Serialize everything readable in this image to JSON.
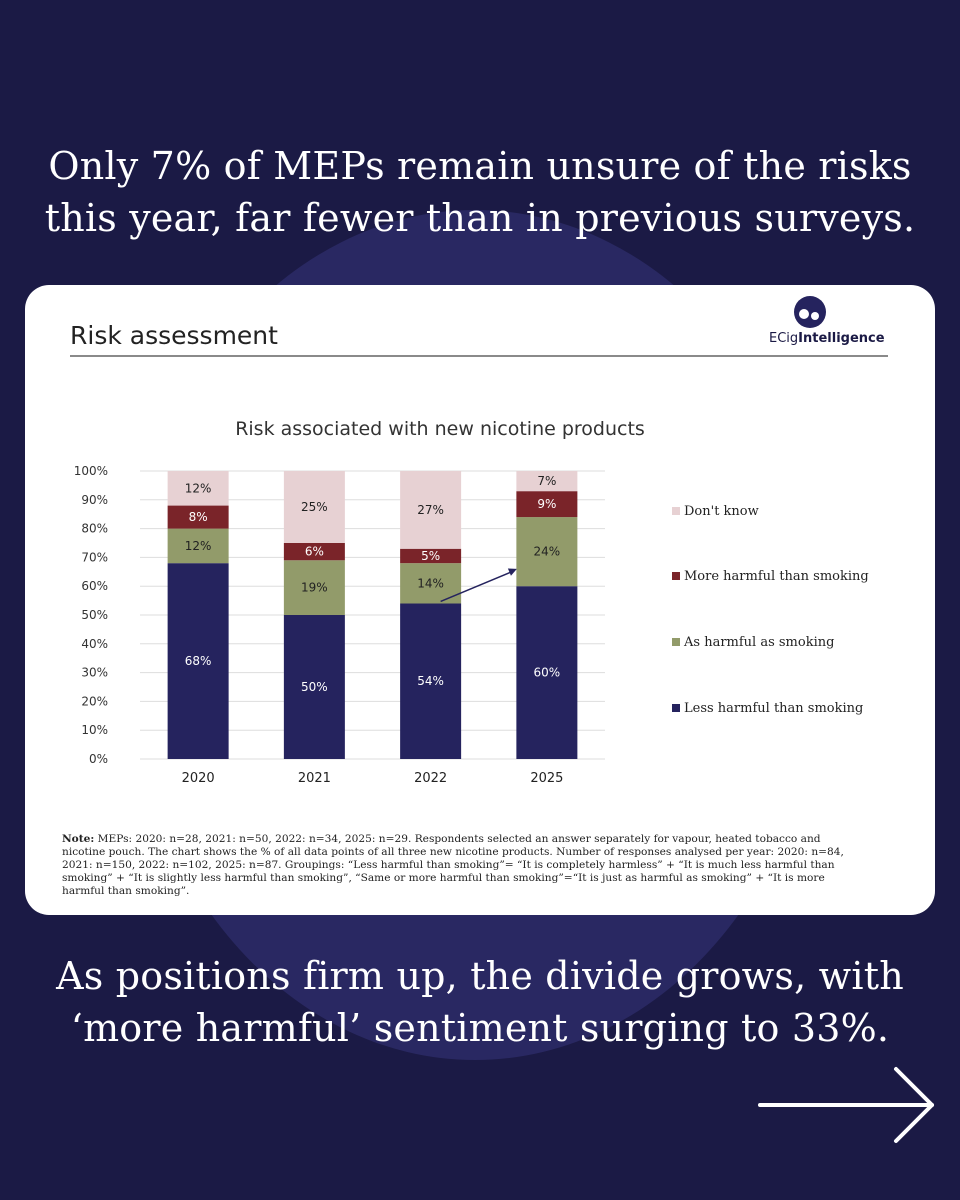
{
  "headline_top": {
    "line1": "Only 7% of MEPs remain unsure of the risks",
    "line2": "this year, far fewer than in previous surveys."
  },
  "headline_bottom": {
    "line1": "As positions firm up, the divide grows, with",
    "line2": "‘more harmful’ sentiment surging to 33%."
  },
  "slide": {
    "title": "Risk assessment",
    "logo_text_light": "ECig",
    "logo_text_bold": "Intelligence"
  },
  "chart_data": {
    "type": "bar",
    "stacked": true,
    "title": "Risk associated with new nicotine products",
    "categories": [
      "2020",
      "2021",
      "2022",
      "2025"
    ],
    "ylim": [
      0,
      100
    ],
    "yticks": [
      "0%",
      "10%",
      "20%",
      "30%",
      "40%",
      "50%",
      "60%",
      "70%",
      "80%",
      "90%",
      "100%"
    ],
    "series": [
      {
        "name": "Less harmful than smoking",
        "color": "#25235e",
        "values": [
          68,
          50,
          54,
          60
        ],
        "labels": [
          "68%",
          "50%",
          "54%",
          "60%"
        ],
        "label_color": "#ffffff"
      },
      {
        "name": "As harmful as smoking",
        "color": "#929b6a",
        "values": [
          12,
          19,
          14,
          24
        ],
        "labels": [
          "12%",
          "19%",
          "14%",
          "24%"
        ],
        "label_color": "#222222"
      },
      {
        "name": "More harmful than smoking",
        "color": "#7a2429",
        "values": [
          8,
          6,
          5,
          9
        ],
        "labels": [
          "8%",
          "6%",
          "5%",
          "9%"
        ],
        "label_color": "#ffffff"
      },
      {
        "name": "Don't know",
        "color": "#e7d1d3",
        "values": [
          12,
          25,
          27,
          7
        ],
        "labels": [
          "12%",
          "25%",
          "27%",
          "7%"
        ],
        "label_color": "#222222"
      }
    ],
    "legend_order": [
      "Don't know",
      "More harmful than smoking",
      "As harmful as smoking",
      "Less harmful than smoking"
    ],
    "annotation": "arrow from 2022 to 2025 bar"
  },
  "note": {
    "label": "Note:",
    "text": " MEPs: 2020: n=28, 2021: n=50, 2022: n=34, 2025: n=29. Respondents selected an answer separately for vapour, heated tobacco and nicotine pouch. The chart shows the % of all data points of all three new nicotine products. Number of responses analysed per year: 2020: n=84, 2021: n=150, 2022: n=102, 2025: n=87. Groupings: “Less harmful than smoking”= “It is completely harmless” + “It is much less harmful than smoking” + “It is slightly less harmful than smoking”, “Same or more harmful than smoking”=“It is just as harmful as smoking” + “It is more harmful than smoking”."
  },
  "colors": {
    "background": "#1b1a45",
    "circle": "#2f2e6c",
    "card": "#ffffff",
    "accent": "#25235e"
  },
  "icons": {
    "next": "right-arrow-icon",
    "logo": "ecig-logo-icon"
  }
}
